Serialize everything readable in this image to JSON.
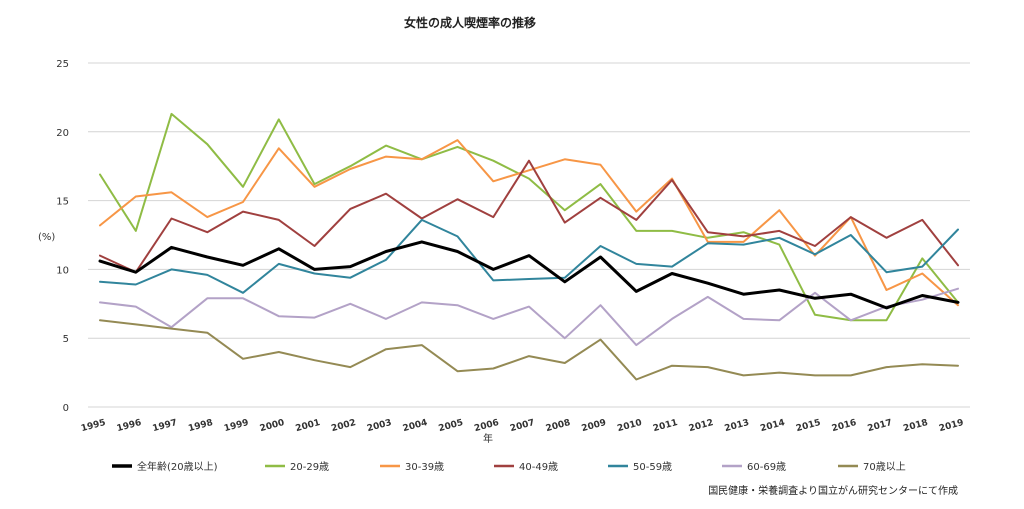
{
  "chart_data": {
    "type": "line",
    "title": "女性の成人喫煙率の推移",
    "xlabel": "年",
    "ylabel": "(%)",
    "ylim": [
      0,
      25
    ],
    "yticks": [
      0,
      5,
      10,
      15,
      20,
      25
    ],
    "grid": true,
    "legend_position": "bottom",
    "source": "国民健康・栄養調査より国立がん研究センターにて作成",
    "x": [
      "1995",
      "1996",
      "1997",
      "1998",
      "1999",
      "2000",
      "2001",
      "2002",
      "2003",
      "2004",
      "2005",
      "2006",
      "2007",
      "2008",
      "2009",
      "2010",
      "2011",
      "2012",
      "2013",
      "2014",
      "2015",
      "2016",
      "2017",
      "2018",
      "2019"
    ],
    "series": [
      {
        "name": "全年齢(20歳以上)",
        "color": "#000000",
        "width": 3,
        "values": [
          10.6,
          9.8,
          11.6,
          10.9,
          10.3,
          11.5,
          10.0,
          10.2,
          11.3,
          12.0,
          11.3,
          10.0,
          11.0,
          9.1,
          10.9,
          8.4,
          9.7,
          9.0,
          8.2,
          8.5,
          7.9,
          8.2,
          7.2,
          8.1,
          7.6
        ]
      },
      {
        "name": "20-29歳",
        "color": "#8fbc45",
        "width": 2,
        "values": [
          16.9,
          12.8,
          21.3,
          19.1,
          16.0,
          20.9,
          16.2,
          17.5,
          19.0,
          18.0,
          18.9,
          17.9,
          16.6,
          14.3,
          16.2,
          12.8,
          12.8,
          12.3,
          12.7,
          11.8,
          6.7,
          6.3,
          6.3,
          10.8,
          7.6
        ]
      },
      {
        "name": "30-39歳",
        "color": "#f79646",
        "width": 2,
        "values": [
          13.2,
          15.3,
          15.6,
          13.8,
          14.9,
          18.8,
          16.0,
          17.3,
          18.2,
          18.0,
          19.4,
          16.4,
          17.2,
          18.0,
          17.6,
          14.2,
          16.6,
          12.0,
          12.0,
          14.3,
          11.0,
          13.8,
          8.5,
          9.7,
          7.4
        ]
      },
      {
        "name": "40-49歳",
        "color": "#a0403f",
        "width": 2,
        "values": [
          11.0,
          9.8,
          13.7,
          12.7,
          14.2,
          13.6,
          11.7,
          14.4,
          15.5,
          13.7,
          15.1,
          13.8,
          17.9,
          13.4,
          15.2,
          13.6,
          16.5,
          12.7,
          12.4,
          12.8,
          11.7,
          13.8,
          12.3,
          13.6,
          10.3
        ]
      },
      {
        "name": "50-59歳",
        "color": "#31859c",
        "width": 2,
        "values": [
          9.1,
          8.9,
          10.0,
          9.6,
          8.3,
          10.4,
          9.7,
          9.4,
          10.7,
          13.6,
          12.4,
          9.2,
          9.3,
          9.4,
          11.7,
          10.4,
          10.2,
          11.9,
          11.8,
          12.3,
          11.1,
          12.5,
          9.8,
          10.2,
          12.9
        ]
      },
      {
        "name": "60-69歳",
        "color": "#b3a2c7",
        "width": 2,
        "values": [
          7.6,
          7.3,
          5.8,
          7.9,
          7.9,
          6.6,
          6.5,
          7.5,
          6.4,
          7.6,
          7.4,
          6.4,
          7.3,
          5.0,
          7.4,
          4.5,
          6.4,
          8.0,
          6.4,
          6.3,
          8.3,
          6.3,
          7.3,
          7.8,
          8.6
        ]
      },
      {
        "name": "70歳以上",
        "color": "#948a54",
        "width": 2,
        "values": [
          6.3,
          6.0,
          5.7,
          5.4,
          3.5,
          4.0,
          3.4,
          2.9,
          4.2,
          4.5,
          2.6,
          2.8,
          3.7,
          3.2,
          4.9,
          2.0,
          3.0,
          2.9,
          2.3,
          2.5,
          2.3,
          2.3,
          2.9,
          3.1,
          3.0
        ]
      }
    ]
  }
}
